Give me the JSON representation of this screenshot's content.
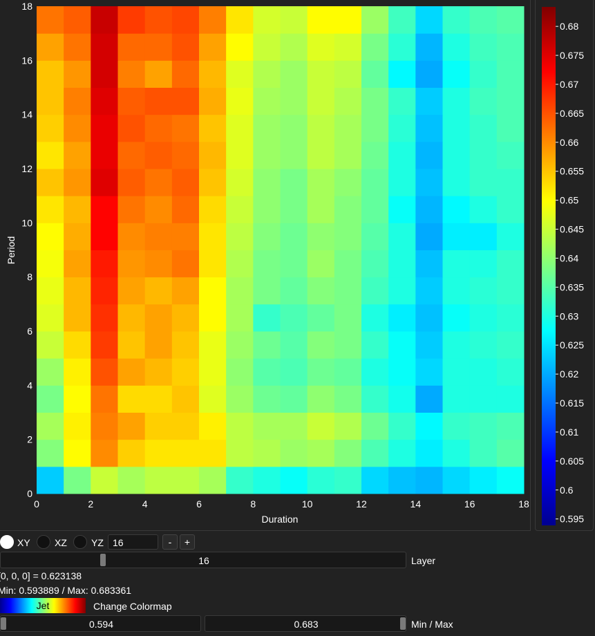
{
  "chart_data": {
    "type": "heatmap",
    "xlabel": "Duration",
    "ylabel": "Period",
    "x_ticks": [
      0,
      2,
      4,
      6,
      8,
      10,
      12,
      14,
      16,
      18
    ],
    "y_ticks": [
      0,
      2,
      4,
      6,
      8,
      10,
      12,
      14,
      16,
      18
    ],
    "xlim": [
      0,
      18
    ],
    "ylim": [
      0,
      18
    ],
    "colormap": "jet",
    "color_range": [
      0.593889,
      0.683361
    ],
    "colorbar_ticks": [
      0.595,
      0.6,
      0.605,
      0.61,
      0.615,
      0.62,
      0.625,
      0.63,
      0.635,
      0.64,
      0.645,
      0.65,
      0.655,
      0.66,
      0.665,
      0.67,
      0.675,
      0.68
    ],
    "rows_bottom_to_top": [
      [
        0.623,
        0.638,
        0.645,
        0.642,
        0.644,
        0.644,
        0.642,
        0.632,
        0.63,
        0.628,
        0.631,
        0.632,
        0.624,
        0.622,
        0.621,
        0.624,
        0.626,
        0.628
      ],
      [
        0.639,
        0.65,
        0.66,
        0.654,
        0.652,
        0.652,
        0.652,
        0.644,
        0.643,
        0.641,
        0.642,
        0.639,
        0.634,
        0.63,
        0.626,
        0.63,
        0.633,
        0.635
      ],
      [
        0.642,
        0.651,
        0.661,
        0.658,
        0.654,
        0.654,
        0.651,
        0.644,
        0.642,
        0.642,
        0.645,
        0.643,
        0.637,
        0.632,
        0.627,
        0.632,
        0.633,
        0.634
      ],
      [
        0.638,
        0.65,
        0.662,
        0.653,
        0.653,
        0.655,
        0.647,
        0.641,
        0.637,
        0.636,
        0.64,
        0.638,
        0.632,
        0.629,
        0.62,
        0.63,
        0.63,
        0.63
      ],
      [
        0.641,
        0.651,
        0.665,
        0.658,
        0.656,
        0.654,
        0.648,
        0.64,
        0.635,
        0.634,
        0.637,
        0.636,
        0.63,
        0.628,
        0.624,
        0.63,
        0.63,
        0.631
      ],
      [
        0.645,
        0.653,
        0.667,
        0.655,
        0.658,
        0.655,
        0.648,
        0.641,
        0.637,
        0.635,
        0.639,
        0.638,
        0.632,
        0.628,
        0.623,
        0.63,
        0.631,
        0.632
      ],
      [
        0.647,
        0.656,
        0.668,
        0.656,
        0.658,
        0.656,
        0.65,
        0.642,
        0.632,
        0.634,
        0.636,
        0.638,
        0.63,
        0.626,
        0.622,
        0.628,
        0.63,
        0.631
      ],
      [
        0.648,
        0.656,
        0.669,
        0.658,
        0.656,
        0.658,
        0.65,
        0.642,
        0.638,
        0.636,
        0.639,
        0.638,
        0.633,
        0.63,
        0.623,
        0.63,
        0.631,
        0.632
      ],
      [
        0.649,
        0.658,
        0.67,
        0.659,
        0.66,
        0.662,
        0.652,
        0.643,
        0.638,
        0.637,
        0.641,
        0.638,
        0.634,
        0.63,
        0.622,
        0.63,
        0.63,
        0.632
      ],
      [
        0.65,
        0.657,
        0.672,
        0.66,
        0.661,
        0.661,
        0.652,
        0.644,
        0.639,
        0.637,
        0.64,
        0.639,
        0.635,
        0.63,
        0.62,
        0.626,
        0.626,
        0.63
      ],
      [
        0.652,
        0.656,
        0.672,
        0.662,
        0.66,
        0.663,
        0.653,
        0.645,
        0.64,
        0.638,
        0.642,
        0.639,
        0.636,
        0.628,
        0.621,
        0.627,
        0.63,
        0.632
      ],
      [
        0.655,
        0.659,
        0.675,
        0.664,
        0.662,
        0.664,
        0.655,
        0.646,
        0.64,
        0.638,
        0.642,
        0.64,
        0.636,
        0.63,
        0.622,
        0.63,
        0.632,
        0.632
      ],
      [
        0.652,
        0.658,
        0.674,
        0.663,
        0.664,
        0.663,
        0.656,
        0.647,
        0.641,
        0.64,
        0.644,
        0.642,
        0.637,
        0.63,
        0.621,
        0.63,
        0.632,
        0.633
      ],
      [
        0.654,
        0.66,
        0.674,
        0.665,
        0.663,
        0.662,
        0.655,
        0.647,
        0.641,
        0.64,
        0.644,
        0.642,
        0.638,
        0.631,
        0.622,
        0.63,
        0.632,
        0.634
      ],
      [
        0.655,
        0.661,
        0.675,
        0.664,
        0.665,
        0.665,
        0.657,
        0.648,
        0.642,
        0.641,
        0.645,
        0.643,
        0.638,
        0.632,
        0.623,
        0.63,
        0.633,
        0.634
      ],
      [
        0.655,
        0.659,
        0.676,
        0.661,
        0.658,
        0.663,
        0.656,
        0.647,
        0.643,
        0.641,
        0.645,
        0.644,
        0.636,
        0.627,
        0.62,
        0.628,
        0.632,
        0.634
      ],
      [
        0.658,
        0.662,
        0.676,
        0.663,
        0.663,
        0.665,
        0.658,
        0.65,
        0.645,
        0.643,
        0.647,
        0.646,
        0.638,
        0.631,
        0.621,
        0.63,
        0.633,
        0.634
      ],
      [
        0.662,
        0.664,
        0.677,
        0.667,
        0.665,
        0.666,
        0.661,
        0.652,
        0.646,
        0.645,
        0.65,
        0.65,
        0.641,
        0.633,
        0.624,
        0.632,
        0.634,
        0.635
      ]
    ]
  },
  "controls": {
    "plane_xy": "XY",
    "plane_xz": "XZ",
    "plane_yz": "YZ",
    "selected_plane": "XY",
    "layer_input_value": "16",
    "minus_label": "-",
    "plus_label": "+",
    "layer_slider_value": "16",
    "layer_slider_fraction": 0.89,
    "layer_label": "Layer",
    "probe_text": "[0, 0, 0] = 0.623138",
    "minmax_text": "Min: 0.593889 / Max: 0.683361",
    "colormap_name": "Jet",
    "change_colormap_label": "Change Colormap",
    "min_value": "0.594",
    "max_value": "0.683",
    "minmax_label": "Min / Max"
  }
}
